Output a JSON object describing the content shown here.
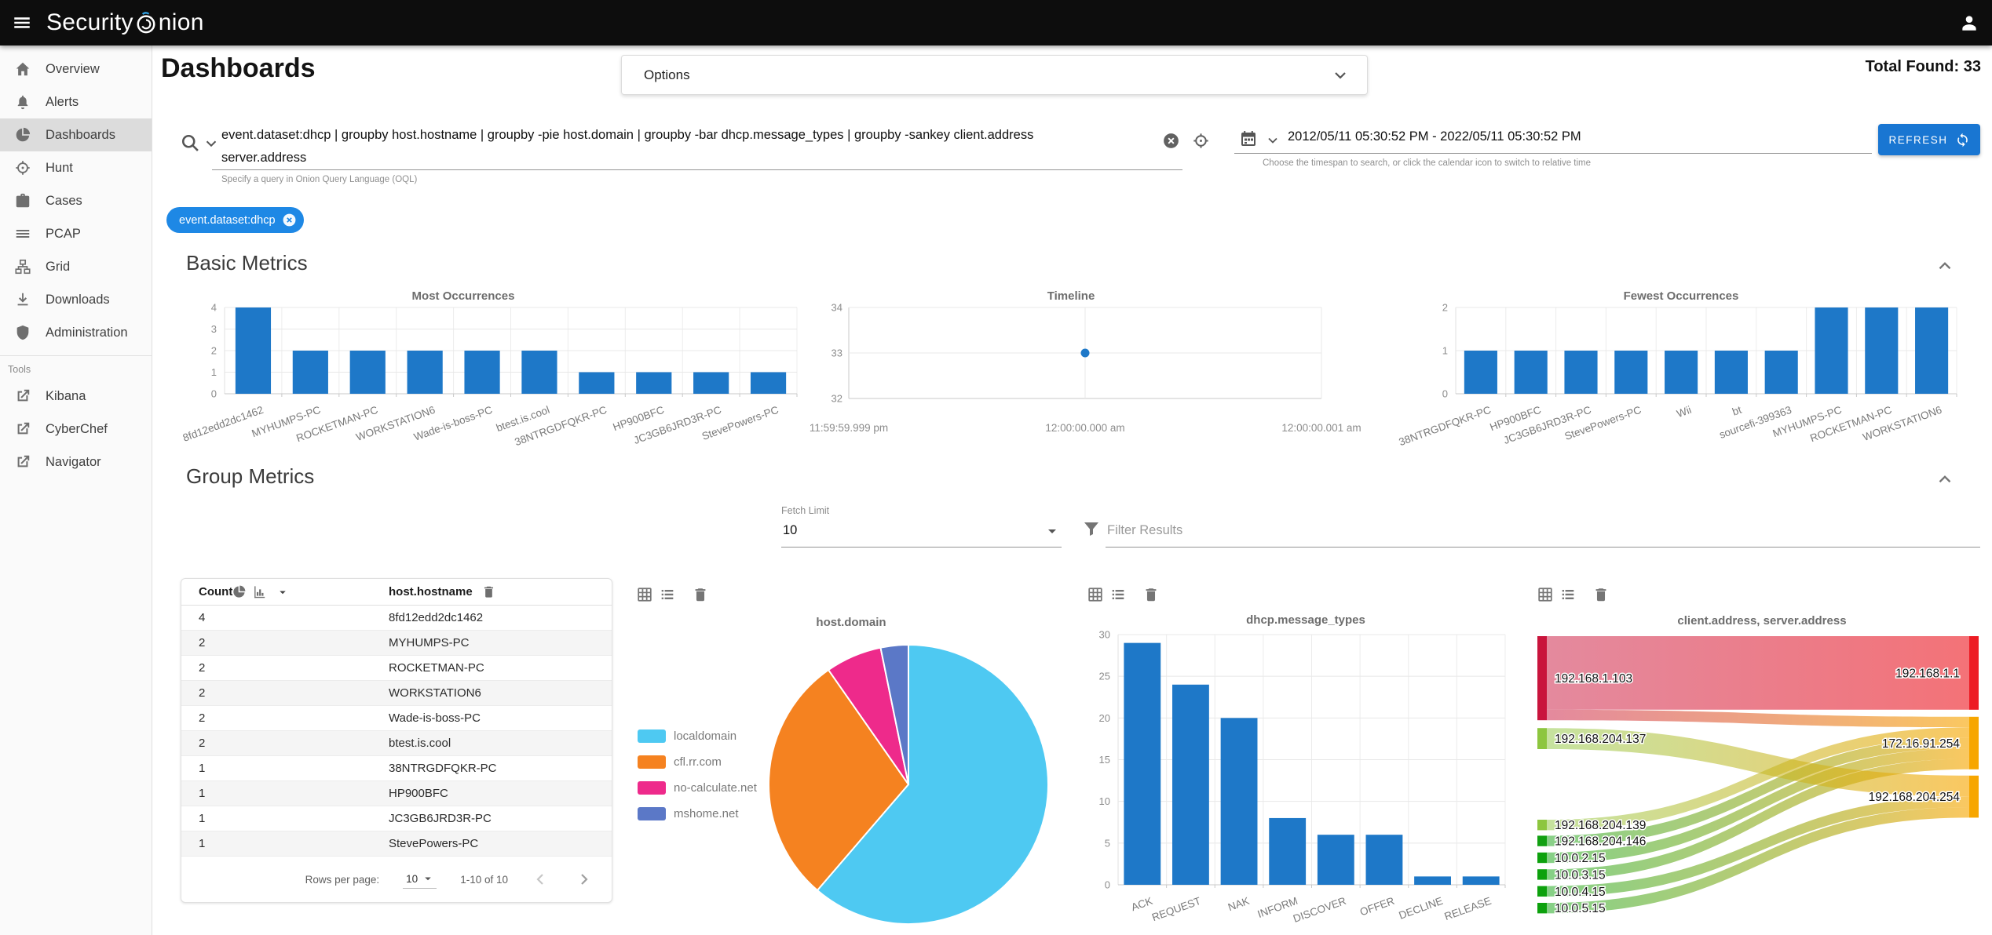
{
  "topbar": {
    "brand_prefix": "Security",
    "brand_suffix": "nion"
  },
  "sidebar": {
    "items": [
      {
        "label": "Overview",
        "icon": "home"
      },
      {
        "label": "Alerts",
        "icon": "bell"
      },
      {
        "label": "Dashboards",
        "icon": "dashboards",
        "selected": true
      },
      {
        "label": "Hunt",
        "icon": "crosshair"
      },
      {
        "label": "Cases",
        "icon": "briefcase"
      },
      {
        "label": "PCAP",
        "icon": "pcap"
      },
      {
        "label": "Grid",
        "icon": "grid"
      },
      {
        "label": "Downloads",
        "icon": "download"
      },
      {
        "label": "Administration",
        "icon": "shield"
      }
    ],
    "tools_label": "Tools",
    "tools": [
      {
        "label": "Kibana",
        "icon": "external"
      },
      {
        "label": "CyberChef",
        "icon": "external"
      },
      {
        "label": "Navigator",
        "icon": "external"
      }
    ]
  },
  "header": {
    "title": "Dashboards",
    "options_label": "Options",
    "total_found": "Total Found: 33"
  },
  "search": {
    "query_line1": "event.dataset:dhcp | groupby host.hostname | groupby -pie host.domain | groupby -bar dhcp.message_types | groupby -sankey client.address",
    "query_line2": "server.address",
    "hint": "Specify a query in Onion Query Language (OQL)",
    "chip": "event.dataset:dhcp"
  },
  "timespan": {
    "value": "2012/05/11 05:30:52 PM - 2022/05/11 05:30:52 PM",
    "hint": "Choose the timespan to search, or click the calendar icon to switch to relative time",
    "refresh_label": "REFRESH"
  },
  "sections": {
    "basic_metrics": "Basic Metrics",
    "group_metrics": "Group Metrics"
  },
  "group_controls": {
    "fetch_limit_label": "Fetch Limit",
    "fetch_limit_value": "10",
    "filter_placeholder": "Filter Results"
  },
  "table": {
    "columns": [
      "Count",
      "host.hostname"
    ],
    "rows": [
      [
        "4",
        "8fd12edd2dc1462"
      ],
      [
        "2",
        "MYHUMPS-PC"
      ],
      [
        "2",
        "ROCKETMAN-PC"
      ],
      [
        "2",
        "WORKSTATION6"
      ],
      [
        "2",
        "Wade-is-boss-PC"
      ],
      [
        "2",
        "btest.is.cool"
      ],
      [
        "1",
        "38NTRGDFQKR-PC"
      ],
      [
        "1",
        "HP900BFC"
      ],
      [
        "1",
        "JC3GB6JRD3R-PC"
      ],
      [
        "1",
        "StevePowers-PC"
      ]
    ],
    "footer": {
      "rows_per_page_label": "Rows per page:",
      "rows_per_page_value": "10",
      "range": "1-10 of 10"
    }
  },
  "colors": {
    "bar_blue": "#1e78c8",
    "accent_blue": "#1e88e5",
    "refresh_blue": "#1976d2"
  },
  "chart_data": [
    {
      "id": "most_occurrences",
      "type": "bar",
      "title": "Most Occurrences",
      "categories": [
        "8fd12edd2dc1462",
        "MYHUMPS-PC",
        "ROCKETMAN-PC",
        "WORKSTATION6",
        "Wade-is-boss-PC",
        "btest.is.cool",
        "38NTRGDFQKR-PC",
        "HP900BFC",
        "JC3GB6JRD3R-PC",
        "StevePowers-PC"
      ],
      "values": [
        4,
        2,
        2,
        2,
        2,
        2,
        1,
        1,
        1,
        1
      ],
      "ylim": [
        0,
        4
      ],
      "yticks": [
        0,
        1,
        2,
        3,
        4
      ],
      "color": "#1e78c8",
      "grid": true
    },
    {
      "id": "timeline",
      "type": "scatter",
      "title": "Timeline",
      "xticks": [
        "11:59:59.999 pm",
        "12:00:00.000 am",
        "12:00:00.001 am"
      ],
      "points": [
        {
          "x_label": "12:00:00.000 am",
          "x_index": 1,
          "y": 33
        }
      ],
      "ylim": [
        32,
        34
      ],
      "yticks": [
        32,
        33,
        34
      ],
      "color": "#1e78c8",
      "grid": true
    },
    {
      "id": "fewest_occurrences",
      "type": "bar",
      "title": "Fewest Occurrences",
      "categories": [
        "38NTRGDFQKR-PC",
        "HP900BFC",
        "JC3GB6JRD3R-PC",
        "StevePowers-PC",
        "Wii",
        "bt",
        "sourcefi-399363",
        "MYHUMPS-PC",
        "ROCKETMAN-PC",
        "WORKSTATION6"
      ],
      "values": [
        1,
        1,
        1,
        1,
        1,
        1,
        1,
        2,
        2,
        2
      ],
      "ylim": [
        0,
        2
      ],
      "yticks": [
        0,
        1,
        2
      ],
      "color": "#1e78c8",
      "grid": true
    },
    {
      "id": "host_domain_pie",
      "type": "pie",
      "title": "host.domain",
      "labels": [
        "localdomain",
        "cfl.rr.com",
        "no-calculate.net",
        "mshome.net"
      ],
      "values": [
        61.3,
        29.0,
        6.5,
        3.2
      ],
      "unit": "percent_estimate",
      "colors": [
        "#4ec9f2",
        "#f58220",
        "#ee2a8b",
        "#5b78c7"
      ],
      "legend_position": "left"
    },
    {
      "id": "dhcp_message_types",
      "type": "bar",
      "title": "dhcp.message_types",
      "categories": [
        "ACK",
        "REQUEST",
        "NAK",
        "INFORM",
        "DISCOVER",
        "OFFER",
        "DECLINE",
        "RELEASE"
      ],
      "values": [
        29,
        24,
        20,
        8,
        6,
        6,
        1,
        1
      ],
      "ylim": [
        0,
        30
      ],
      "yticks": [
        0,
        5,
        10,
        15,
        20,
        25,
        30
      ],
      "color": "#1e78c8",
      "grid": true
    },
    {
      "id": "client_server_sankey",
      "type": "sankey",
      "title": "client.address, server.address",
      "nodes": [
        {
          "id": "192.168.1.103",
          "side": "left",
          "color": "#c9143c"
        },
        {
          "id": "192.168.204.137",
          "side": "left",
          "color": "#8dc63f"
        },
        {
          "id": "192.168.204.139",
          "side": "left",
          "color": "#8dc63f"
        },
        {
          "id": "192.168.204.146",
          "side": "left",
          "color": "#12a012"
        },
        {
          "id": "10.0.2.15",
          "side": "left",
          "color": "#0da10d"
        },
        {
          "id": "10.0.3.15",
          "side": "left",
          "color": "#0da10d"
        },
        {
          "id": "10.0.4.15",
          "side": "left",
          "color": "#0da10d"
        },
        {
          "id": "10.0.5.15",
          "side": "left",
          "color": "#0da10d"
        },
        {
          "id": "192.168.1.1",
          "side": "right",
          "color": "#ed1c24"
        },
        {
          "id": "172.16.91.254",
          "side": "right",
          "color": "#f7a600"
        },
        {
          "id": "192.168.204.254",
          "side": "right",
          "color": "#f7a600"
        }
      ],
      "flows": [
        {
          "source": "192.168.1.103",
          "target": "192.168.1.1",
          "value": 7
        },
        {
          "source": "192.168.1.103",
          "target": "172.16.91.254",
          "value": 1
        },
        {
          "source": "192.168.204.139",
          "target": "172.16.91.254",
          "value": 1
        },
        {
          "source": "192.168.204.146",
          "target": "172.16.91.254",
          "value": 1
        },
        {
          "source": "10.0.2.15",
          "target": "172.16.91.254",
          "value": 1
        },
        {
          "source": "10.0.3.15",
          "target": "172.16.91.254",
          "value": 1
        },
        {
          "source": "192.168.204.137",
          "target": "192.168.204.254",
          "value": 2
        },
        {
          "source": "10.0.4.15",
          "target": "192.168.204.254",
          "value": 1
        },
        {
          "source": "10.0.5.15",
          "target": "192.168.204.254",
          "value": 1
        }
      ]
    }
  ]
}
